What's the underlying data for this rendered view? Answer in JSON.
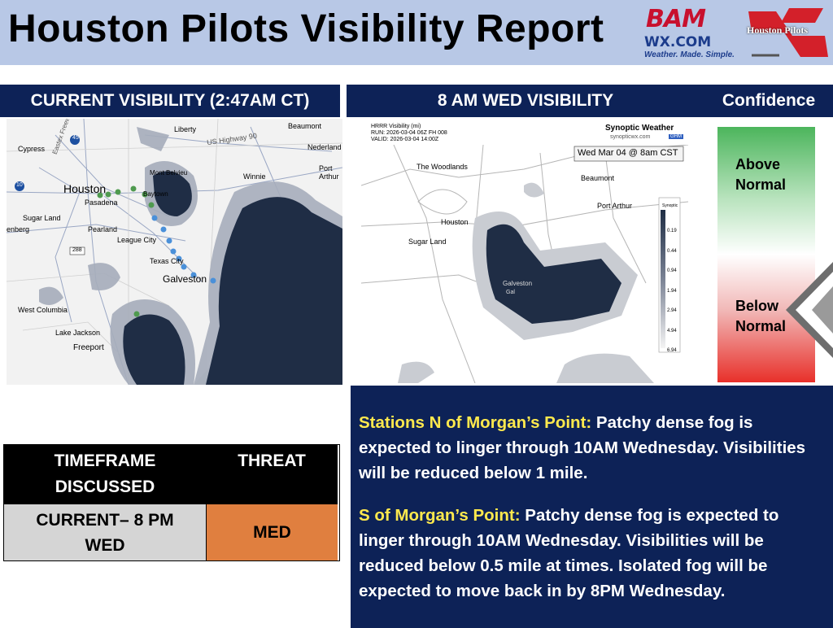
{
  "header": {
    "title": "Houston Pilots Visibility Report"
  },
  "logos": {
    "bam_top": "BAM",
    "bam_domain": "WX.COM",
    "bam_tagline": "Weather. Made. Simple.",
    "pilots": "Houston Pilots"
  },
  "current_panel": {
    "title": "CURRENT VISIBILITY (2:47AM CT)",
    "labels": {
      "cypress": "Cypress",
      "liberty": "Liberty",
      "beaumont": "Beaumont",
      "nederland": "Nederland",
      "winnie": "Winnie",
      "port_arthur": "Port Arthur",
      "houston": "Houston",
      "pasadena": "Pasadena",
      "baytown": "Baytown",
      "mont_belvieu": "Mont Belvieu",
      "sugar_land": "Sugar Land",
      "pearland": "Pearland",
      "league_city": "League City",
      "texas_city": "Texas City",
      "galveston": "Galveston",
      "west_columbia": "West Columbia",
      "lake_jackson": "Lake Jackson",
      "freeport": "Freeport",
      "rosenberg": "enberg",
      "highway": "US Highway 90",
      "i10": "10",
      "i45": "45",
      "hw288": "288",
      "eastex": "Eastex Freeway"
    }
  },
  "forecast_panel": {
    "title": "8 AM WED VISIBILITY",
    "hrrr_title": "HRRR Visibility (mi)",
    "run": "RUN: 2026-03-04 06Z FH 008",
    "valid": "VALID: 2026-03-04 14:00Z",
    "brand": "Synoptic Weather",
    "brand_url": "synopticwx.com",
    "brand_badge": "GHM",
    "date_label": "Wed Mar 04 @ 8am CST",
    "scale_brand": "Synoptic",
    "scale_values": [
      "0.19",
      "0.44",
      "0.94",
      "1.94",
      "2.94",
      "4.94",
      "6.94"
    ],
    "labels": {
      "woodlands": "The Woodlands",
      "beaumont": "Beaumont",
      "port_arthur": "Port Arthur",
      "houston": "Houston",
      "sugar_land": "Sugar Land",
      "galveston": "Galveston",
      "galveston2": "Gal"
    }
  },
  "confidence": {
    "title": "Confidence",
    "above": "Above Normal",
    "below": "Below Normal"
  },
  "threat_table": {
    "col1_header": "TIMEFRAME DISCUSSED",
    "col2_header": "THREAT",
    "row_timeframe": "CURRENT– 8 PM WED",
    "row_threat": "MED",
    "threat_color": "#e07f3f"
  },
  "notes": {
    "p1_lead": "Stations N of Morgan’s Point:",
    "p1_text": " Patchy dense fog is expected to linger through 10AM Wednesday. Visibilities will be reduced below 1 mile.",
    "p2_lead": "S of Morgan’s Point:",
    "p2_text": " Patchy dense fog is expected to linger through 10AM Wednesday. Visibilities will be reduced below 0.5 mile at times. Isolated fog will be expected to move back in by 8PM Wednesday."
  },
  "colors": {
    "header_bg": "#b8c8e6",
    "navy": "#0d2257",
    "highlight": "#ffe94d",
    "fog": "#1f2d45"
  }
}
